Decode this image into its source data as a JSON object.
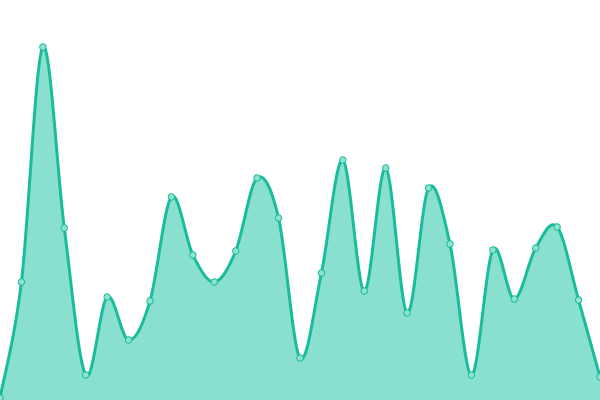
{
  "chart_data": {
    "type": "area",
    "title": "",
    "xlabel": "",
    "ylabel": "",
    "ylim": [
      0,
      400
    ],
    "grid": false,
    "legend": "none",
    "smooth": true,
    "x": [
      0,
      1,
      2,
      3,
      4,
      5,
      6,
      7,
      8,
      9,
      10,
      11,
      12,
      13,
      14,
      15,
      16,
      17,
      18,
      19,
      20,
      21,
      22,
      23,
      24,
      25,
      26,
      27,
      28
    ],
    "values": [
      2,
      118,
      353,
      172,
      25,
      103,
      60,
      99,
      203,
      145,
      118,
      149,
      222,
      182,
      42,
      127,
      240,
      109,
      232,
      87,
      212,
      156,
      25,
      150,
      101,
      152,
      173,
      100,
      23
    ],
    "colors": {
      "line": "#1abc9c",
      "fill": "#8ae0cf",
      "marker": "#8ee3d1"
    }
  }
}
